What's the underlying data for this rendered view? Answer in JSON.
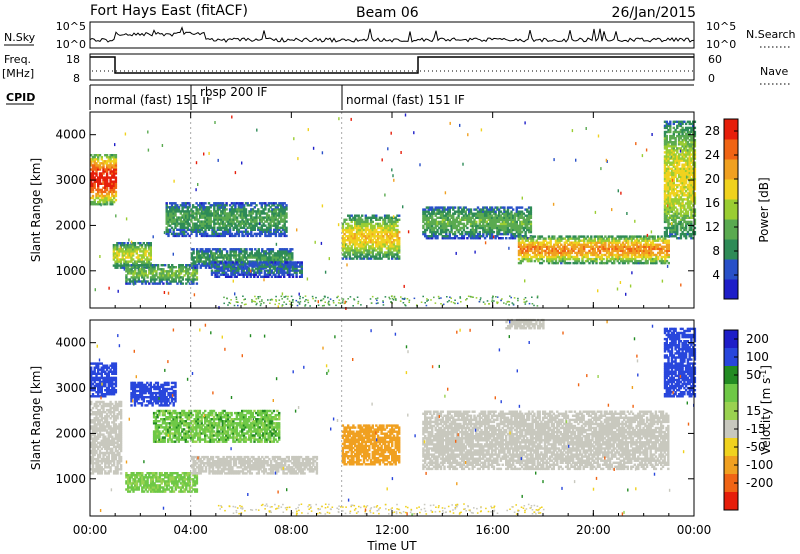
{
  "header": {
    "station": "Fort Hays East (fitACF)",
    "beam": "Beam 06",
    "date": "26/Jan/2015"
  },
  "strips": {
    "nsky_label": "N.Sky",
    "nsky_ticks": [
      "10^5",
      "10^0"
    ],
    "nsearch_label": "N.Search",
    "nsearch_ticks": [
      "10^5",
      "10^0"
    ],
    "freq_label_1": "Freq.",
    "freq_label_2": "[MHz]",
    "freq_ticks": [
      "18",
      "8"
    ],
    "nave_label": "Nave",
    "nave_ticks": [
      "60",
      "0"
    ],
    "cpid_label": "CPID",
    "cpid_segments": [
      {
        "start_h": 0.0,
        "text": "normal (fast) 151 IF"
      },
      {
        "start_h": 4.0,
        "text": "rbsp 200 IF"
      },
      {
        "start_h": 10.0,
        "text": "normal (fast) 151 IF"
      }
    ]
  },
  "chart_data": [
    {
      "type": "heatmap",
      "panel": "power",
      "title": "",
      "xlabel": "Time UT",
      "ylabel": "Slant Range [km]",
      "x_range_h": [
        0,
        24
      ],
      "xticks": [
        "00:00",
        "04:00",
        "08:00",
        "12:00",
        "16:00",
        "20:00",
        "00:00"
      ],
      "ylim": [
        180,
        4500
      ],
      "yticks": [
        "1000",
        "2000",
        "3000",
        "4000"
      ],
      "colorbar_label": "Power [dB]",
      "colorbar_ticks": [
        "4",
        "8",
        "12",
        "16",
        "20",
        "24",
        "28"
      ],
      "colorbar_range": [
        0,
        30
      ],
      "colors": [
        "#1e1ec8",
        "#2850c8",
        "#2e8b57",
        "#5aaa50",
        "#9acd32",
        "#f0d21e",
        "#f0a020",
        "#f06414",
        "#e61e0a"
      ],
      "regions": [
        {
          "t0": 0.0,
          "t1": 1.0,
          "r0": 2450,
          "r1": 3550,
          "level": 24
        },
        {
          "t0": 0.9,
          "t1": 2.4,
          "r0": 1050,
          "r1": 1600,
          "level": 14
        },
        {
          "t0": 1.4,
          "t1": 4.2,
          "r0": 700,
          "r1": 1150,
          "level": 11
        },
        {
          "t0": 3.0,
          "t1": 7.8,
          "r0": 1750,
          "r1": 2500,
          "level": 9
        },
        {
          "t0": 4.0,
          "t1": 8.0,
          "r0": 1050,
          "r1": 1500,
          "level": 8
        },
        {
          "t0": 4.8,
          "t1": 8.4,
          "r0": 850,
          "r1": 1200,
          "level": 6
        },
        {
          "t0": 10.0,
          "t1": 12.3,
          "r0": 1250,
          "r1": 2200,
          "level": 16
        },
        {
          "t0": 13.2,
          "t1": 17.5,
          "r0": 1700,
          "r1": 2400,
          "level": 10
        },
        {
          "t0": 17.0,
          "t1": 23.0,
          "r0": 1150,
          "r1": 1750,
          "level": 19
        },
        {
          "t0": 22.8,
          "t1": 24.0,
          "r0": 1700,
          "r1": 4300,
          "level": 15
        }
      ]
    },
    {
      "type": "heatmap",
      "panel": "velocity",
      "title": "",
      "xlabel": "Time UT",
      "ylabel": "Slant Range [km]",
      "x_range_h": [
        0,
        24
      ],
      "xticks": [
        "00:00",
        "04:00",
        "08:00",
        "12:00",
        "16:00",
        "20:00",
        "00:00"
      ],
      "ylim": [
        180,
        4500
      ],
      "yticks": [
        "1000",
        "2000",
        "3000",
        "4000"
      ],
      "colorbar_label": "Velocity [m s",
      "colorbar_label_sup": "-1",
      "colorbar_label_end": "]",
      "colorbar_ticks": [
        "200",
        "100",
        "50",
        "15",
        "-15",
        "-50",
        "-100",
        "-200"
      ],
      "colors": [
        "#1e1ec8",
        "#2846dc",
        "#228b22",
        "#6ec846",
        "#9ad250",
        "#c8c8be",
        "#f0d21e",
        "#f0a020",
        "#f06414",
        "#e61e0a"
      ],
      "regions": [
        {
          "t0": 0.0,
          "t1": 1.0,
          "r0": 2800,
          "r1": 3550,
          "v": 180
        },
        {
          "t0": 0.0,
          "t1": 1.2,
          "r0": 1100,
          "r1": 2700,
          "v": 0
        },
        {
          "t0": 1.6,
          "t1": 3.4,
          "r0": 2600,
          "r1": 3100,
          "v": 150
        },
        {
          "t0": 2.5,
          "t1": 7.5,
          "r0": 1800,
          "r1": 2500,
          "v": 40
        },
        {
          "t0": 1.4,
          "t1": 4.2,
          "r0": 700,
          "r1": 1150,
          "v": 35
        },
        {
          "t0": 4.0,
          "t1": 9.0,
          "r0": 1100,
          "r1": 1500,
          "v": 0
        },
        {
          "t0": 10.0,
          "t1": 12.3,
          "r0": 1300,
          "r1": 2200,
          "v": -70
        },
        {
          "t0": 13.2,
          "t1": 23.0,
          "r0": 1200,
          "r1": 2500,
          "v": 0
        },
        {
          "t0": 22.8,
          "t1": 24.0,
          "r0": 2800,
          "r1": 4300,
          "v": 170
        },
        {
          "t0": 16.5,
          "t1": 18.0,
          "r0": 4300,
          "r1": 4500,
          "v": 0
        }
      ]
    }
  ]
}
